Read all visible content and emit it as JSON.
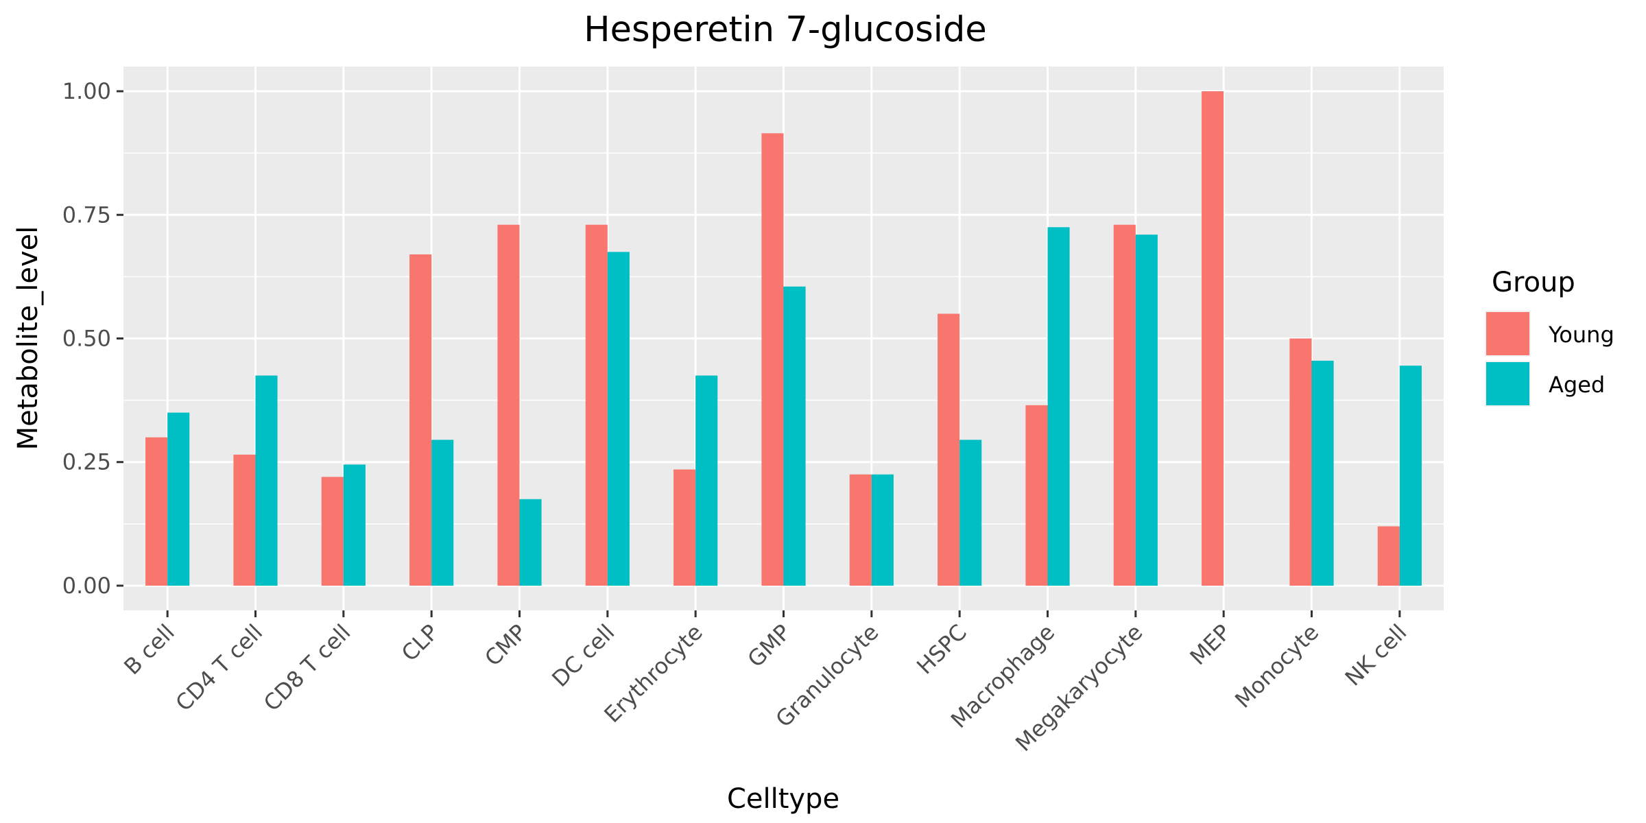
{
  "chart_data": {
    "type": "bar",
    "title": "Hesperetin 7-glucoside",
    "xlabel": "Celltype",
    "ylabel": "Metabolite_level",
    "categories": [
      "B cell",
      "CD4 T cell",
      "CD8 T cell",
      "CLP",
      "CMP",
      "DC cell",
      "Erythrocyte",
      "GMP",
      "Granulocyte",
      "HSPC",
      "Macrophage",
      "Megakaryocyte",
      "MEP",
      "Monocyte",
      "NK cell"
    ],
    "series": [
      {
        "name": "Young",
        "color": "#F8766D",
        "values": [
          0.3,
          0.265,
          0.22,
          0.67,
          0.73,
          0.73,
          0.235,
          0.915,
          0.225,
          0.55,
          0.365,
          0.73,
          1.0,
          0.5,
          0.12
        ]
      },
      {
        "name": "Aged",
        "color": "#00BFC4",
        "values": [
          0.35,
          0.425,
          0.245,
          0.295,
          0.175,
          0.675,
          0.425,
          0.605,
          0.225,
          0.295,
          0.725,
          0.71,
          0.0,
          0.455,
          0.445
        ]
      }
    ],
    "ylim": [
      -0.05,
      1.05
    ],
    "yticks": [
      0.0,
      0.25,
      0.5,
      0.75,
      1.0
    ],
    "ytick_labels": [
      "0.00",
      "0.25",
      "0.50",
      "0.75",
      "1.00"
    ],
    "grid": true,
    "panel_background": "#EBEBEB",
    "legend": {
      "title": "Group",
      "position": "right"
    }
  }
}
